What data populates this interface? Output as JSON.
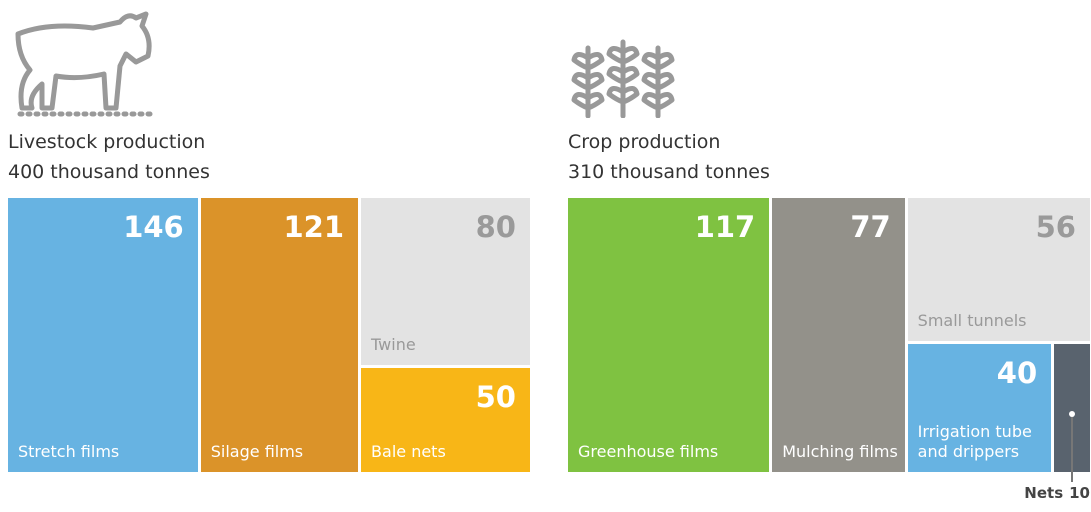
{
  "chart_data": [
    {
      "type": "treemap",
      "title": "Livestock production",
      "subtitle": "400 thousand tonnes",
      "categories": [
        "Stretch films",
        "Silage films",
        "Twine",
        "Bale nets"
      ],
      "values": [
        146,
        121,
        80,
        50
      ],
      "colors": [
        "#67b3e2",
        "#db9329",
        "#e3e3e3",
        "#f8b617"
      ]
    },
    {
      "type": "treemap",
      "title": "Crop production",
      "subtitle": "310 thousand tonnes",
      "categories": [
        "Greenhouse films",
        "Mulching films",
        "Small tunnels",
        "Irrigation tube and drippers",
        "Nets"
      ],
      "values": [
        117,
        77,
        56,
        40,
        10
      ],
      "colors": [
        "#7fc241",
        "#93918a",
        "#e3e3e3",
        "#67b3e2",
        "#59636e"
      ]
    }
  ]
}
